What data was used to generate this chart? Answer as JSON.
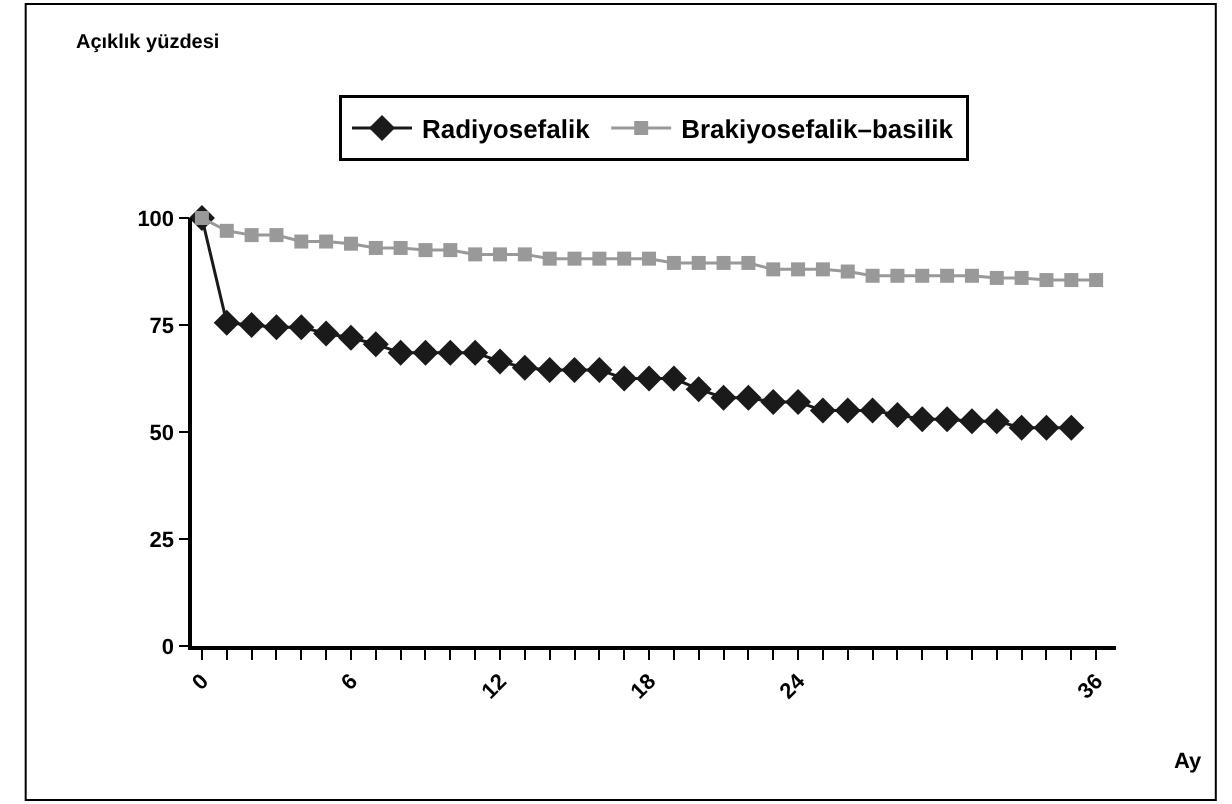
{
  "chart_data": {
    "type": "line",
    "annotations": [
      "Açıklık yüzdesi"
    ],
    "xlabel": "Ay",
    "xlim": [
      -0.4,
      36.8
    ],
    "xticks": [
      0,
      6,
      12,
      18,
      24,
      36
    ],
    "ylim": [
      0,
      100
    ],
    "yticks": [
      0,
      25,
      50,
      75,
      100
    ],
    "grid": false,
    "legend": "top",
    "line_style": "solid",
    "series": [
      {
        "name": "Radiyosefalik",
        "color": "#1a1a1a",
        "marker": "diamond",
        "x": [
          0,
          1,
          2,
          3,
          4,
          5,
          6,
          7,
          8,
          9,
          10,
          11,
          12,
          13,
          14,
          15,
          16,
          17,
          18,
          19,
          20,
          21,
          22,
          23,
          24,
          25,
          26,
          27,
          28,
          29,
          30,
          31,
          32,
          33,
          34,
          35
        ],
        "values": [
          100,
          75.5,
          75,
          74.5,
          74.5,
          73,
          72,
          70.5,
          68.5,
          68.5,
          68.5,
          68.5,
          66.5,
          65,
          64.5,
          64.5,
          64.5,
          62.5,
          62.5,
          62.5,
          60,
          58,
          58,
          57,
          57,
          55,
          55,
          55,
          54,
          53,
          53,
          52.5,
          52.5,
          51,
          51,
          51
        ]
      },
      {
        "name": "Brakiyosefalik–basilik",
        "color": "#999999",
        "marker": "square",
        "x": [
          0,
          1,
          2,
          3,
          4,
          5,
          6,
          7,
          8,
          9,
          10,
          11,
          12,
          13,
          14,
          15,
          16,
          17,
          18,
          19,
          20,
          21,
          22,
          23,
          24,
          25,
          26,
          27,
          28,
          29,
          30,
          31,
          32,
          33,
          34,
          35,
          36
        ],
        "values": [
          100,
          97,
          96,
          96,
          94.5,
          94.5,
          94,
          93,
          93,
          92.5,
          92.5,
          91.5,
          91.5,
          91.5,
          90.5,
          90.5,
          90.5,
          90.5,
          90.5,
          89.5,
          89.5,
          89.5,
          89.5,
          88,
          88,
          88,
          87.5,
          86.5,
          86.5,
          86.5,
          86.5,
          86.5,
          86,
          86,
          85.5,
          85.5,
          85.5
        ]
      }
    ]
  }
}
